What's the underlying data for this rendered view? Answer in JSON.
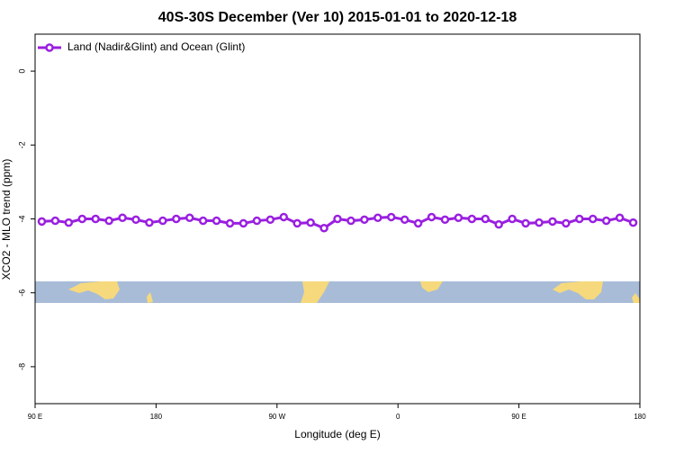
{
  "chart_data": {
    "type": "line",
    "title": "40S-30S December (Ver 10)   2015-01-01 to 2020-12-18",
    "x_label": "Longitude (deg E)",
    "y_label": "XCO2 - MLO trend (ppm)",
    "x": [
      95,
      105,
      115,
      125,
      135,
      145,
      155,
      165,
      175,
      185,
      195,
      205,
      215,
      225,
      235,
      245,
      255,
      265,
      275,
      285,
      295,
      305,
      315,
      325,
      335,
      345,
      355,
      365,
      375,
      385,
      395,
      405,
      415,
      425,
      435,
      445,
      455,
      465,
      475,
      485,
      495,
      505,
      515,
      525,
      535
    ],
    "series": [
      {
        "name": "Land (Nadir&Glint) and Ocean (Glint)",
        "color": "#9a1fe0",
        "values": [
          -4.07,
          -4.05,
          -4.1,
          -4.0,
          -4.0,
          -4.05,
          -3.97,
          -4.02,
          -4.1,
          -4.05,
          -4.0,
          -3.97,
          -4.05,
          -4.05,
          -4.12,
          -4.12,
          -4.05,
          -4.02,
          -3.95,
          -4.12,
          -4.1,
          -4.25,
          -4.0,
          -4.05,
          -4.02,
          -3.97,
          -3.95,
          -4.02,
          -4.12,
          -3.95,
          -4.02,
          -3.97,
          -4.0,
          -4.0,
          -4.15,
          -4.0,
          -4.12,
          -4.1,
          -4.07,
          -4.12,
          -4.0,
          -4.0,
          -4.05,
          -3.97,
          -4.1
        ]
      }
    ],
    "xlim": [
      90,
      540
    ],
    "xticks": [
      {
        "value": 90,
        "label": "90 E"
      },
      180,
      {
        "value": 270,
        "label": "90 W"
      },
      {
        "value": 360,
        "label": "0"
      },
      {
        "value": 450,
        "label": "90 E"
      },
      {
        "value": 540,
        "label": "180"
      }
    ],
    "ylim": [
      -9,
      1
    ],
    "yticks": [
      0,
      -2,
      -4,
      -6,
      -8
    ],
    "legend": "top-left"
  }
}
